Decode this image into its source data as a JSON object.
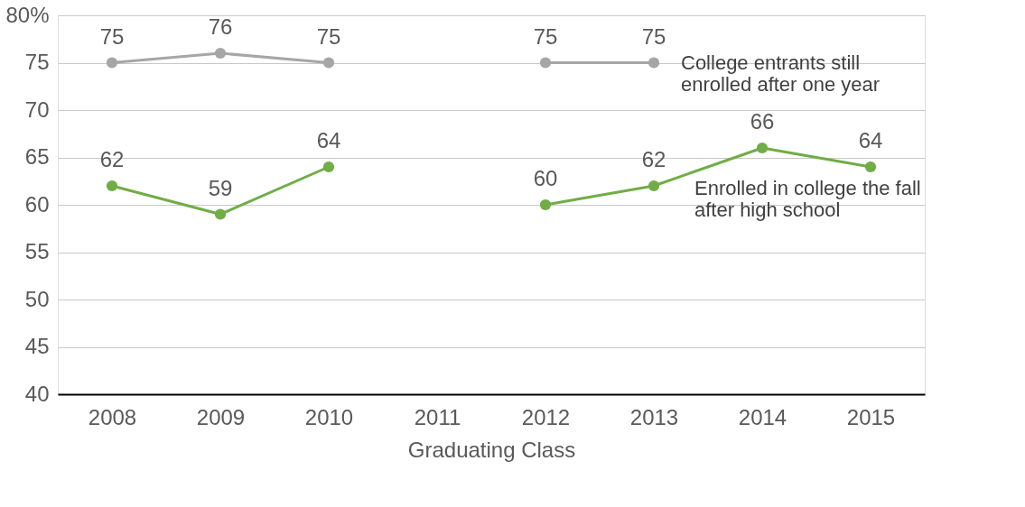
{
  "chart_data": {
    "type": "line",
    "xlabel": "Graduating Class",
    "categories": [
      "2008",
      "2009",
      "2010",
      "2011",
      "2012",
      "2013",
      "2014",
      "2015"
    ],
    "series": [
      {
        "name": "College entrants still enrolled after one year",
        "color": "#a6a6a6",
        "values": [
          75,
          76,
          75,
          null,
          75,
          75,
          null,
          null
        ]
      },
      {
        "name": "Enrolled in college the fall after high school",
        "color": "#70ad47",
        "values": [
          62,
          59,
          64,
          null,
          60,
          62,
          66,
          64
        ]
      }
    ],
    "ylim": [
      40,
      80
    ],
    "yticks": [
      40,
      45,
      50,
      55,
      60,
      65,
      70,
      75,
      {
        "value": 80,
        "label": "80%"
      }
    ],
    "grid": "y",
    "marker": "circle",
    "line_style": "solid",
    "data_labels": true
  }
}
